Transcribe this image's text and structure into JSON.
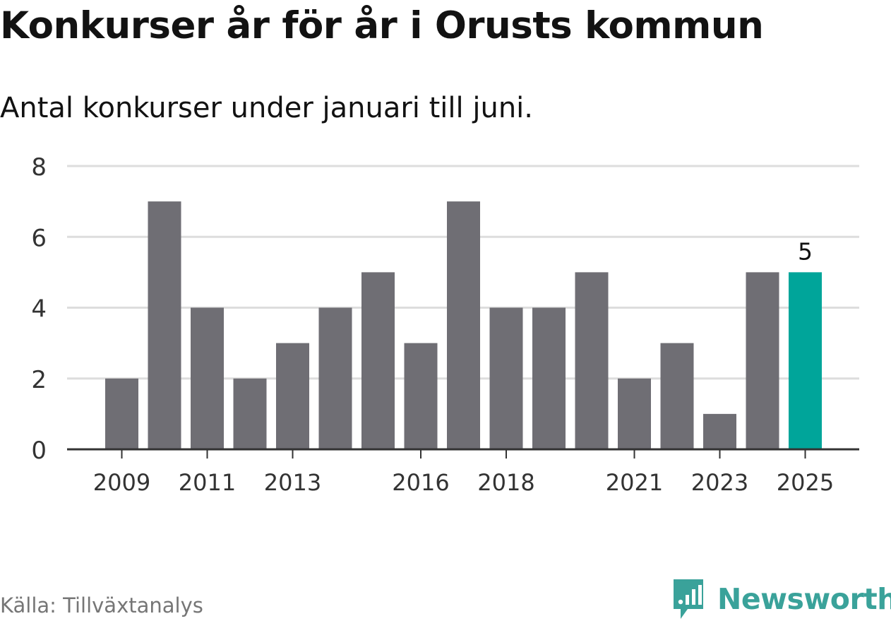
{
  "title": "Konkurser år för år i Orusts kommun",
  "subtitle": "Antal konkurser under januari till juni.",
  "source": "Källa: Tillväxtanalys",
  "brand": {
    "name": "Newsworthy",
    "icon": "newsworthy-logo-icon",
    "color": "#3aa29a"
  },
  "chart_data": {
    "type": "bar",
    "categories": [
      "2009",
      "2010",
      "2011",
      "2012",
      "2013",
      "2014",
      "2015",
      "2016",
      "2017",
      "2018",
      "2019",
      "2020",
      "2021",
      "2022",
      "2023",
      "2024",
      "2025"
    ],
    "values": [
      2,
      7,
      4,
      2,
      3,
      4,
      5,
      3,
      7,
      4,
      4,
      5,
      2,
      3,
      1,
      5,
      5
    ],
    "x_tick_labels": [
      "2009",
      "2011",
      "2013",
      "2016",
      "2018",
      "2021",
      "2023",
      "2025"
    ],
    "ylim": [
      0,
      8
    ],
    "y_ticks": [
      0,
      2,
      4,
      6,
      8
    ],
    "grid": true,
    "highlight": {
      "category": "2025",
      "value_label": "5"
    },
    "colors": {
      "bar": "#6f6e74",
      "highlight": "#00a59a",
      "grid": "#dddddd",
      "axis": "#333333"
    }
  }
}
